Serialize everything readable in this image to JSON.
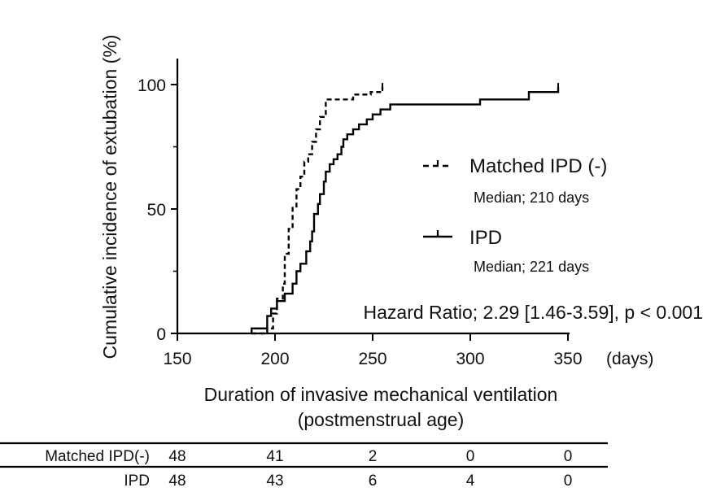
{
  "chart_data": {
    "type": "line",
    "step": true,
    "xlabel_line1": "Duration of invasive mechanical ventilation",
    "xlabel_line2": "(postmenstrual age)",
    "ylabel": "Cumulative incidence of extubation (%)",
    "x_unit": "(days)",
    "xlim": [
      150,
      350
    ],
    "ylim": [
      0,
      100
    ],
    "xticks": [
      150,
      200,
      250,
      300,
      350
    ],
    "yticks": [
      0,
      50,
      100
    ],
    "grid": false,
    "legend_placement": "right",
    "series": [
      {
        "name": "Matched IPD (-)",
        "style": "dashed",
        "median_label": "Median; 210 days",
        "points": [
          [
            188,
            0
          ],
          [
            196,
            2
          ],
          [
            199,
            8
          ],
          [
            201,
            14
          ],
          [
            204,
            20
          ],
          [
            205,
            32
          ],
          [
            207,
            42
          ],
          [
            209,
            51
          ],
          [
            211,
            58
          ],
          [
            213,
            63
          ],
          [
            215,
            69
          ],
          [
            217,
            72
          ],
          [
            219,
            77
          ],
          [
            221,
            82
          ],
          [
            223,
            87
          ],
          [
            226,
            94
          ],
          [
            238,
            94
          ],
          [
            240,
            96
          ],
          [
            247,
            96
          ],
          [
            249,
            97
          ],
          [
            253,
            97
          ],
          [
            255,
            99
          ]
        ]
      },
      {
        "name": "IPD",
        "style": "solid",
        "median_label": "Median; 221 days",
        "points": [
          [
            188,
            0
          ],
          [
            188,
            2
          ],
          [
            194,
            2
          ],
          [
            196,
            7
          ],
          [
            198,
            10
          ],
          [
            201,
            13
          ],
          [
            205,
            16
          ],
          [
            209,
            20
          ],
          [
            211,
            25
          ],
          [
            213,
            28
          ],
          [
            216,
            33
          ],
          [
            218,
            37
          ],
          [
            219,
            41
          ],
          [
            220,
            48
          ],
          [
            222,
            52
          ],
          [
            223,
            56
          ],
          [
            225,
            61
          ],
          [
            226,
            65
          ],
          [
            228,
            68
          ],
          [
            230,
            70
          ],
          [
            232,
            72
          ],
          [
            234,
            75
          ],
          [
            235,
            78
          ],
          [
            237,
            80
          ],
          [
            240,
            82
          ],
          [
            243,
            84
          ],
          [
            247,
            86
          ],
          [
            250,
            88
          ],
          [
            254,
            90
          ],
          [
            259,
            92
          ],
          [
            302,
            92
          ],
          [
            305,
            94
          ],
          [
            328,
            94
          ],
          [
            330,
            97
          ],
          [
            345,
            97
          ],
          [
            345,
            99
          ]
        ]
      }
    ],
    "annotation": "Hazard Ratio; 2.29 [1.46-3.59], p < 0.001"
  },
  "risk_table": {
    "rows": [
      {
        "label": "Matched IPD(-)",
        "values": [
          "48",
          "41",
          "2",
          "0",
          "0"
        ]
      },
      {
        "label": "IPD",
        "values": [
          "48",
          "43",
          "6",
          "4",
          "0"
        ]
      }
    ]
  }
}
